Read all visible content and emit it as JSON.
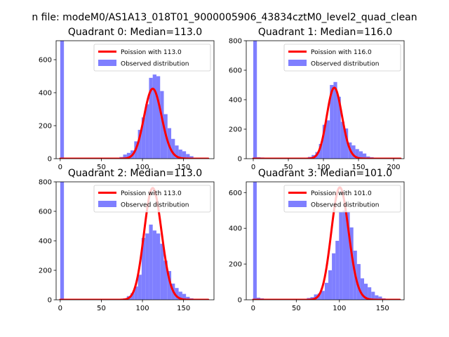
{
  "figure": {
    "suptitle": "n file: modeM0/AS1A13_018T01_9000005906_43834cztM0_level2_quad_clean"
  },
  "colors": {
    "observed": "#7f7fff",
    "poisson": "#ff0000",
    "axis": "#000000",
    "legend_border": "#cccccc"
  },
  "chart_data": [
    {
      "type": "bar",
      "title": "Quadrant 0: Median=113.0",
      "xlabel": "",
      "ylabel": "",
      "xlim": [
        -5,
        187
      ],
      "ylim": [
        0,
        715
      ],
      "xticks": [
        0,
        50,
        100,
        150
      ],
      "yticks": [
        0,
        200,
        400,
        600
      ],
      "legend_position": "upper-right",
      "series": [
        {
          "name": "Observed distribution",
          "kind": "histogram",
          "bin_width": 4.5,
          "bins": [
            [
              0,
              715
            ],
            [
              67.5,
              5
            ],
            [
              72,
              10
            ],
            [
              76.5,
              25
            ],
            [
              81,
              35
            ],
            [
              85.5,
              50
            ],
            [
              90,
              105
            ],
            [
              94.5,
              175
            ],
            [
              99,
              250
            ],
            [
              103.5,
              330
            ],
            [
              108,
              490
            ],
            [
              112.5,
              510
            ],
            [
              117,
              500
            ],
            [
              121.5,
              410
            ],
            [
              126,
              270
            ],
            [
              130.5,
              185
            ],
            [
              135,
              120
            ],
            [
              139.5,
              80
            ],
            [
              144,
              55
            ],
            [
              148.5,
              45
            ],
            [
              153,
              28
            ],
            [
              157.5,
              15
            ],
            [
              162,
              5
            ]
          ]
        },
        {
          "name": "Poission with 113.0",
          "kind": "poisson",
          "mean": 113.0,
          "scale": 11300,
          "xrange": [
            0,
            180
          ]
        }
      ]
    },
    {
      "type": "bar",
      "title": "Quadrant 1: Median=116.0",
      "xlabel": "",
      "ylabel": "",
      "xlim": [
        -10,
        215
      ],
      "ylim": [
        0,
        800
      ],
      "xticks": [
        0,
        50,
        100,
        150,
        200
      ],
      "yticks": [
        0,
        200,
        400,
        600,
        800
      ],
      "legend_position": "upper-right",
      "series": [
        {
          "name": "Observed distribution",
          "kind": "histogram",
          "bin_width": 5.2,
          "bins": [
            [
              0,
              800
            ],
            [
              5.2,
              10
            ],
            [
              10.4,
              8
            ],
            [
              15.6,
              5
            ],
            [
              72.8,
              5
            ],
            [
              78,
              12
            ],
            [
              83.2,
              25
            ],
            [
              88.4,
              45
            ],
            [
              93.6,
              100
            ],
            [
              98.8,
              230
            ],
            [
              104,
              260
            ],
            [
              109.2,
              500
            ],
            [
              114.4,
              520
            ],
            [
              119.6,
              420
            ],
            [
              124.8,
              250
            ],
            [
              130,
              205
            ],
            [
              135.2,
              110
            ],
            [
              140.4,
              90
            ],
            [
              145.6,
              65
            ],
            [
              150.8,
              50
            ],
            [
              156,
              35
            ],
            [
              161.2,
              15
            ],
            [
              166.4,
              10
            ],
            [
              171.6,
              5
            ]
          ]
        },
        {
          "name": "Poission with 116.0",
          "kind": "poisson",
          "mean": 116.0,
          "scale": 13000,
          "xrange": [
            0,
            210
          ]
        }
      ]
    },
    {
      "type": "bar",
      "title": "Quadrant 2: Median=113.0",
      "xlabel": "",
      "ylabel": "",
      "xlim": [
        -5,
        187
      ],
      "ylim": [
        0,
        800
      ],
      "xticks": [
        0,
        50,
        100,
        150
      ],
      "yticks": [
        0,
        200,
        400,
        600,
        800
      ],
      "legend_position": "upper-right",
      "series": [
        {
          "name": "Observed distribution",
          "kind": "histogram",
          "bin_width": 4.5,
          "bins": [
            [
              0,
              800
            ],
            [
              72,
              5
            ],
            [
              76.5,
              10
            ],
            [
              81,
              25
            ],
            [
              85.5,
              45
            ],
            [
              90,
              90
            ],
            [
              94.5,
              170
            ],
            [
              99,
              420
            ],
            [
              103.5,
              450
            ],
            [
              108,
              510
            ],
            [
              112.5,
              470
            ],
            [
              117,
              450
            ],
            [
              121.5,
              380
            ],
            [
              126,
              265
            ],
            [
              130.5,
              195
            ],
            [
              135,
              110
            ],
            [
              139.5,
              80
            ],
            [
              144,
              55
            ],
            [
              148.5,
              40
            ],
            [
              153,
              20
            ],
            [
              157.5,
              10
            ],
            [
              162,
              5
            ]
          ]
        },
        {
          "name": "Poission with 113.0",
          "kind": "poisson",
          "mean": 113.0,
          "scale": 20200,
          "xrange": [
            0,
            180
          ]
        }
      ]
    },
    {
      "type": "bar",
      "title": "Quadrant 3: Median=101.0",
      "xlabel": "",
      "ylabel": "",
      "xlim": [
        -8,
        175
      ],
      "ylim": [
        0,
        660
      ],
      "xticks": [
        0,
        50,
        100,
        150
      ],
      "yticks": [
        0,
        200,
        400,
        600
      ],
      "legend_position": "upper-right",
      "series": [
        {
          "name": "Observed distribution",
          "kind": "histogram",
          "bin_width": 4.15,
          "bins": [
            [
              0,
              660
            ],
            [
              4.15,
              12
            ],
            [
              8.3,
              8
            ],
            [
              12.45,
              5
            ],
            [
              58.1,
              5
            ],
            [
              62.25,
              10
            ],
            [
              66.4,
              15
            ],
            [
              70.55,
              30
            ],
            [
              74.7,
              35
            ],
            [
              78.85,
              50
            ],
            [
              83,
              95
            ],
            [
              87.15,
              165
            ],
            [
              91.3,
              260
            ],
            [
              95.45,
              330
            ],
            [
              99.6,
              490
            ],
            [
              103.75,
              500
            ],
            [
              107.9,
              490
            ],
            [
              112.05,
              405
            ],
            [
              116.2,
              275
            ],
            [
              120.35,
              200
            ],
            [
              124.5,
              120
            ],
            [
              128.65,
              90
            ],
            [
              132.8,
              70
            ],
            [
              136.95,
              45
            ],
            [
              141.1,
              25
            ],
            [
              145.25,
              18
            ],
            [
              149.4,
              8
            ]
          ]
        },
        {
          "name": "Poission with 101.0",
          "kind": "poisson",
          "mean": 101.0,
          "scale": 15850,
          "xrange": [
            0,
            170
          ]
        }
      ]
    }
  ]
}
